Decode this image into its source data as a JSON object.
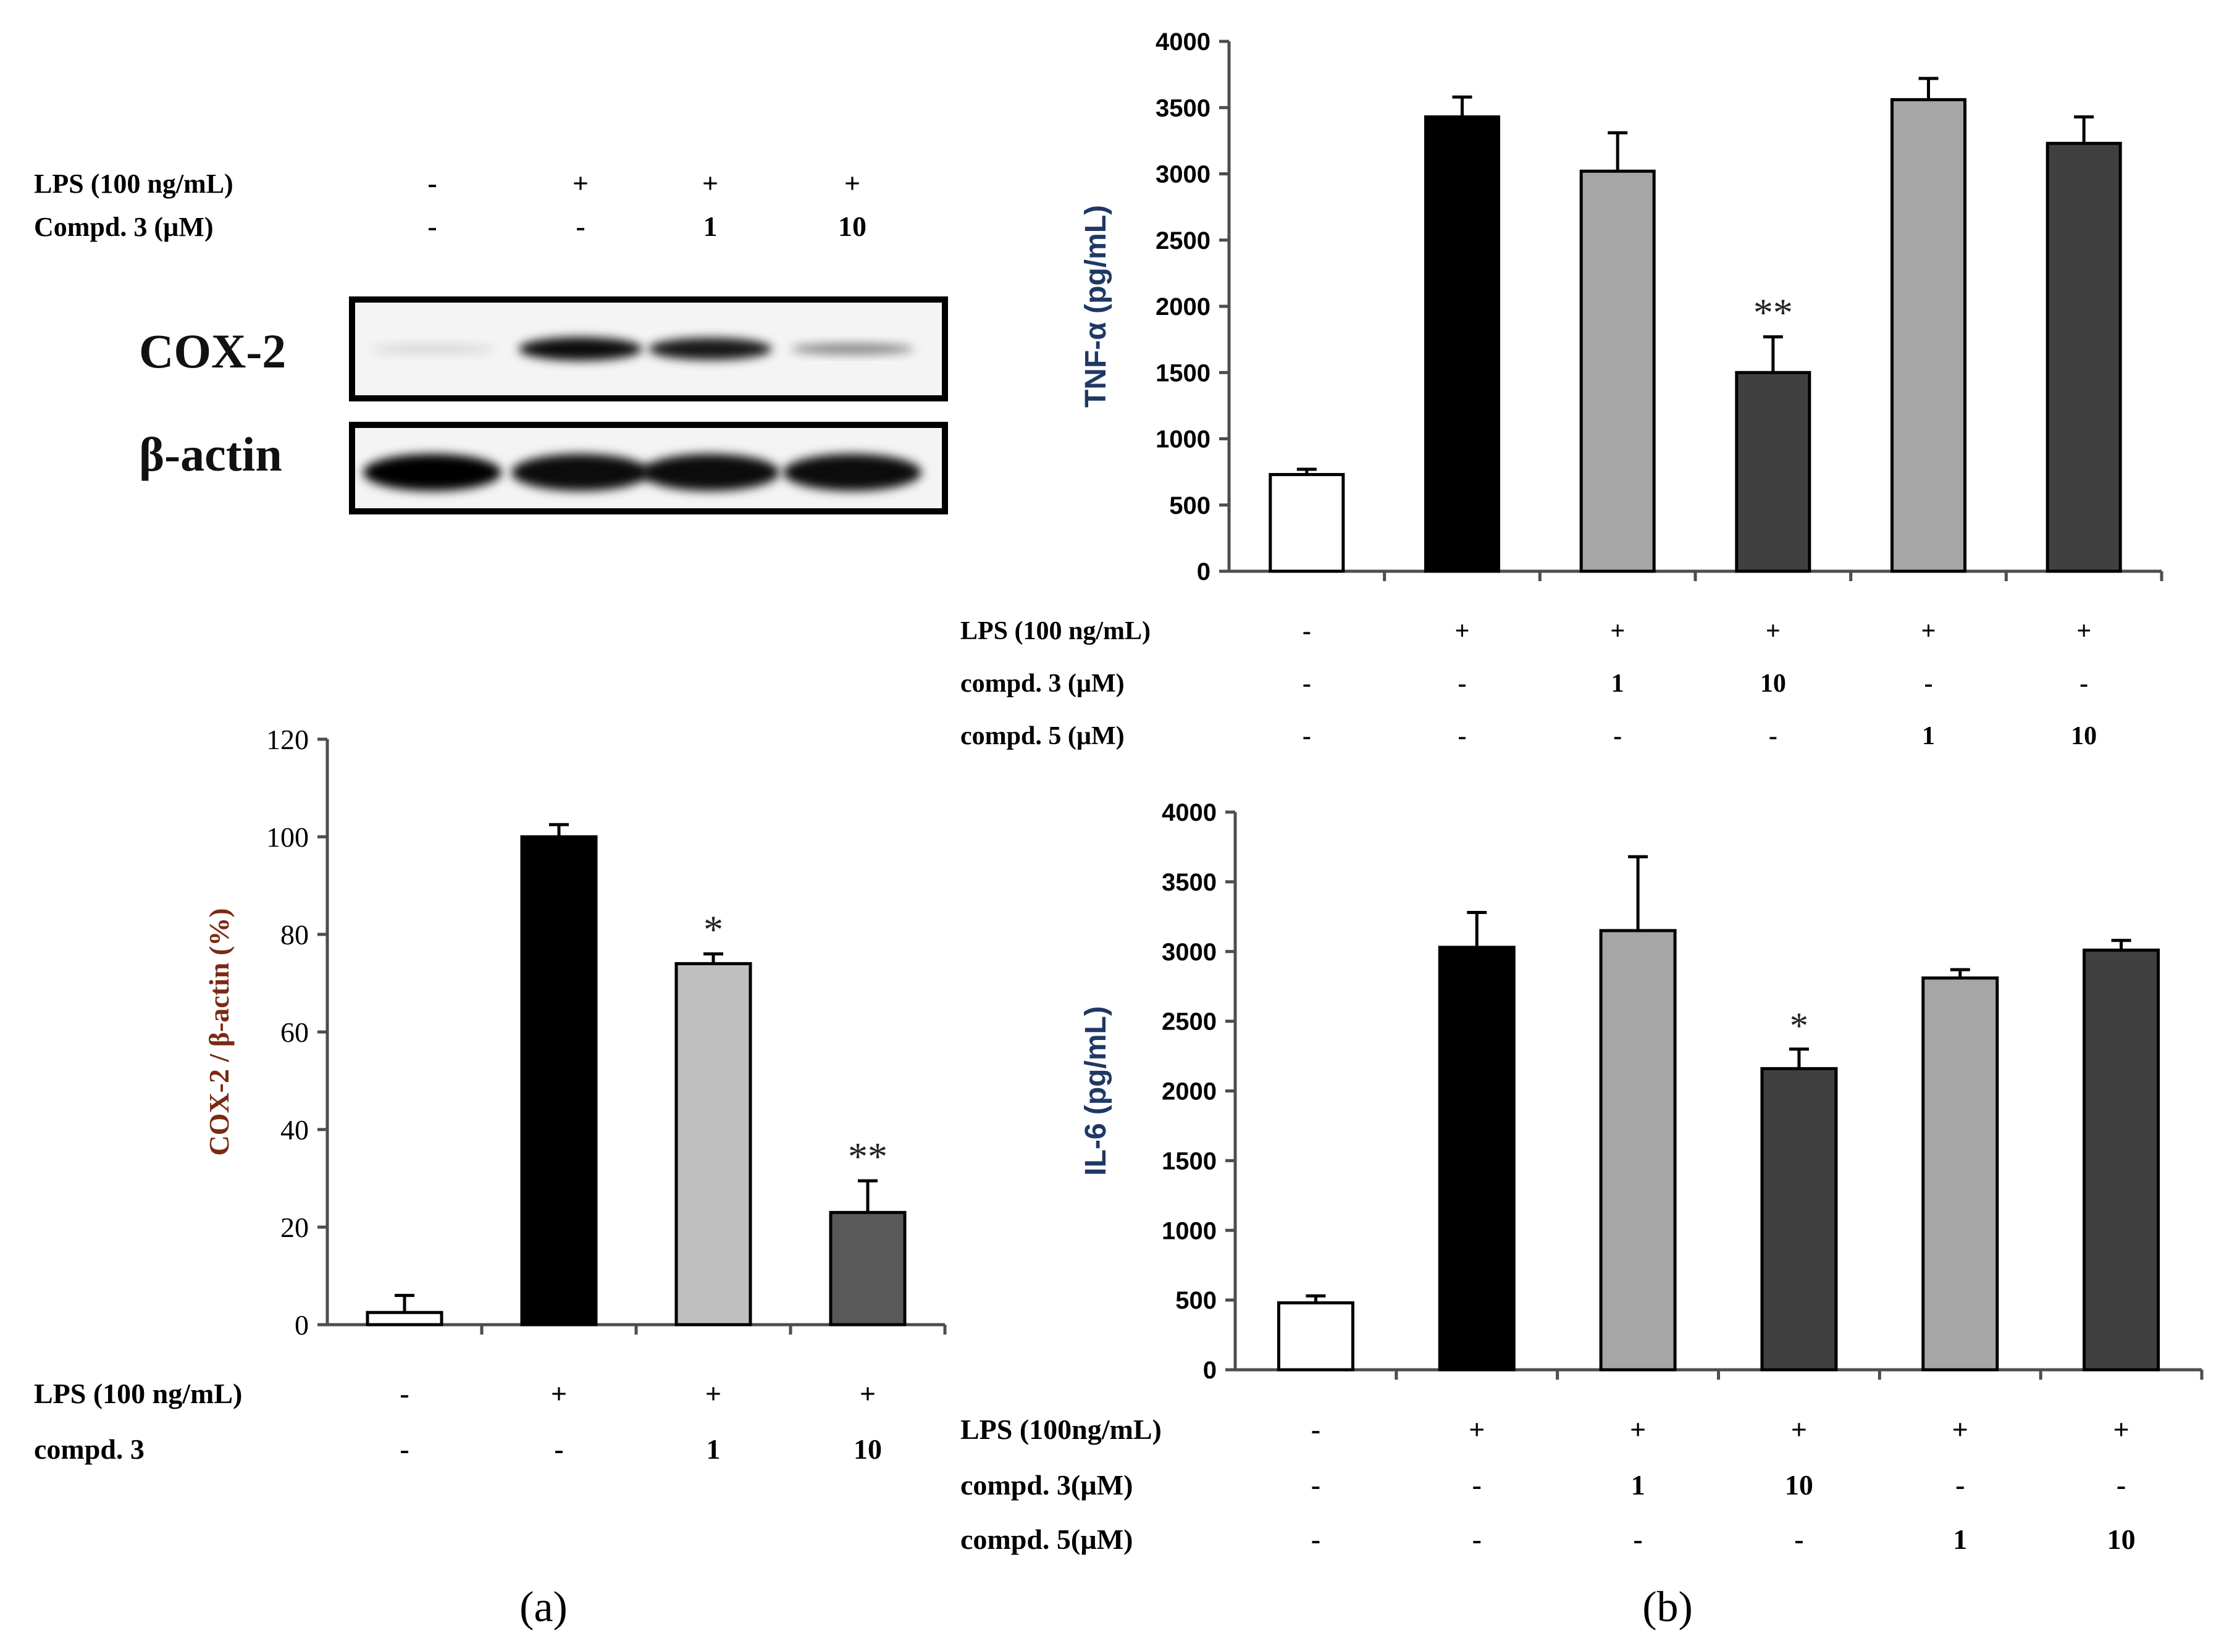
{
  "panel_a": {
    "western_blot": {
      "header_rows": [
        {
          "label": "LPS (100 ng/mL)",
          "values": [
            "-",
            "+",
            "+",
            "+"
          ]
        },
        {
          "label": "Compd. 3  (µM)",
          "values": [
            "-",
            "-",
            "1",
            "10"
          ]
        }
      ],
      "band_labels": [
        "COX-2",
        "β-actin"
      ],
      "cox2_band_intensity": [
        0.12,
        0.95,
        0.9,
        0.45
      ],
      "actin_band_intensity": [
        1.0,
        0.95,
        0.95,
        0.95
      ]
    },
    "conditions": [
      {
        "label": "LPS (100 ng/mL)",
        "values": [
          "-",
          "+",
          "+",
          "+"
        ]
      },
      {
        "label": "compd. 3",
        "values": [
          "-",
          "-",
          "1",
          "10"
        ]
      }
    ],
    "caption": "(a)"
  },
  "panel_b": {
    "tnf_conditions": [
      {
        "label": "LPS (100  ng/mL)",
        "values": [
          "-",
          "+",
          "+",
          "+",
          "+",
          "+"
        ]
      },
      {
        "label": "compd. 3  (µM)",
        "values": [
          "-",
          "-",
          "1",
          "10",
          "-",
          "-"
        ]
      },
      {
        "label": "compd. 5  (µM)",
        "values": [
          "-",
          "-",
          "-",
          "-",
          "1",
          "10"
        ]
      }
    ],
    "il6_conditions": [
      {
        "label": "LPS (100ng/mL)",
        "values": [
          "-",
          "+",
          "+",
          "+",
          "+",
          "+"
        ]
      },
      {
        "label": "compd. 3(µM)",
        "values": [
          "-",
          "-",
          "1",
          "10",
          "-",
          "-"
        ]
      },
      {
        "label": "compd. 5(µM)",
        "values": [
          "-",
          "-",
          "-",
          "-",
          "1",
          "10"
        ]
      }
    ],
    "caption": "(b)"
  },
  "colors": {
    "white": "#ffffff",
    "black": "#000000",
    "light_gray": "#a6a6a6",
    "lighter_gray": "#bfbfbf",
    "dark_gray": "#404040",
    "mid_dark_gray": "#595959",
    "axis_label_red": "#7a2a12",
    "axis_label_navy": "#1f3864"
  },
  "chart_data": [
    {
      "id": "cox2",
      "type": "bar",
      "title": "",
      "xlabel": "",
      "ylabel": "COX-2 / β-actin (%)",
      "ylim": [
        0,
        120
      ],
      "yticks": [
        0,
        20,
        40,
        60,
        80,
        100,
        120
      ],
      "ytick_labels": [
        "0",
        "20",
        "40",
        "60",
        "80",
        "100",
        "120"
      ],
      "grid": false,
      "categories": [
        "1",
        "2",
        "3",
        "4"
      ],
      "values": [
        2.5,
        100,
        74,
        23
      ],
      "errors": [
        3.5,
        2.5,
        2,
        6.5
      ],
      "bar_colors": [
        "#ffffff",
        "#000000",
        "#bfbfbf",
        "#595959"
      ],
      "significance": [
        "",
        "",
        "*",
        "**"
      ]
    },
    {
      "id": "tnf",
      "type": "bar",
      "title": "",
      "xlabel": "",
      "ylabel": "TNF-α (pg/mL)",
      "ylim": [
        0,
        4000
      ],
      "yticks": [
        0,
        500,
        1000,
        1500,
        2000,
        2500,
        3000,
        3500,
        4000
      ],
      "ytick_labels": [
        "0",
        "500",
        "1000",
        "1500",
        "2000",
        "2500",
        "3000",
        "3500",
        "4000"
      ],
      "grid": false,
      "categories": [
        "1",
        "2",
        "3",
        "4",
        "5",
        "6"
      ],
      "values": [
        730,
        3430,
        3020,
        1500,
        3560,
        3230
      ],
      "errors": [
        40,
        150,
        290,
        270,
        160,
        200
      ],
      "bar_colors": [
        "#ffffff",
        "#000000",
        "#a6a6a6",
        "#404040",
        "#a6a6a6",
        "#404040"
      ],
      "significance": [
        "",
        "",
        "",
        "**",
        "",
        ""
      ]
    },
    {
      "id": "il6",
      "type": "bar",
      "title": "",
      "xlabel": "",
      "ylabel": "IL-6  (pg/mL)",
      "ylim": [
        0,
        4000
      ],
      "yticks": [
        0,
        500,
        1000,
        1500,
        2000,
        2500,
        3000,
        3500,
        4000
      ],
      "ytick_labels": [
        "0",
        "500",
        "1000",
        "1500",
        "2000",
        "2500",
        "3000",
        "3500",
        "4000"
      ],
      "grid": false,
      "categories": [
        "1",
        "2",
        "3",
        "4",
        "5",
        "6"
      ],
      "values": [
        480,
        3030,
        3150,
        2160,
        2810,
        3010
      ],
      "errors": [
        50,
        250,
        530,
        140,
        60,
        70
      ],
      "bar_colors": [
        "#ffffff",
        "#000000",
        "#a6a6a6",
        "#404040",
        "#a6a6a6",
        "#404040"
      ],
      "significance": [
        "",
        "",
        "",
        "*",
        "",
        ""
      ]
    }
  ]
}
